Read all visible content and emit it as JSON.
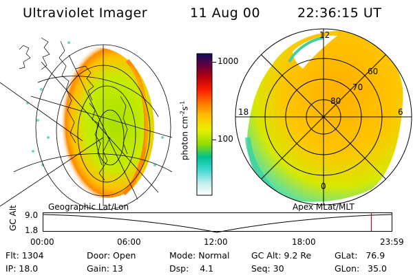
{
  "header": {
    "instrument": "Ultraviolet Imager",
    "date": "11 Aug 00",
    "time": "22:36:15 UT"
  },
  "colorbar": {
    "label": "photon cm^-2 s^-1",
    "label_main": "photon cm",
    "label_sup1": "-2",
    "label_mid": "s",
    "label_sup2": "-1",
    "tick_1000": "1000",
    "tick_100": "100",
    "colors": [
      "#ffffff",
      "#d0f0f0",
      "#40e0d0",
      "#00c8a0",
      "#a0e000",
      "#ffff00",
      "#ffc000",
      "#ff8000",
      "#ff2000",
      "#b00000",
      "#600040",
      "#101060"
    ]
  },
  "left_panel": {
    "label": "Geographic Lat/Lon"
  },
  "right_panel": {
    "label": "Apex MLat/MLT",
    "mlt_12": "12",
    "mlt_18": "18",
    "mlt_6": "6",
    "mlt_0": "0",
    "lat_60": "60",
    "lat_70": "70",
    "lat_80": "80"
  },
  "altitude_plot": {
    "ylabel": "GC Alt",
    "ytick_top": "9.0",
    "ytick_bottom": "1.8",
    "xticks": [
      "00:00",
      "06:00",
      "12:00",
      "18:00",
      "23:59"
    ],
    "marker_time_fraction": 0.94
  },
  "info": {
    "flt_label": "Flt:",
    "flt_value": "1304",
    "ip_label": "IP:",
    "ip_value": "18.0",
    "door_label": "Door:",
    "door_value": "Open",
    "gain_label": "Gain:",
    "gain_value": "13",
    "mode_label": "Mode:",
    "mode_value": "Normal",
    "dsp_label": "Dsp:",
    "dsp_value": "4.1",
    "gcalt_label": "GC Alt:",
    "gcalt_value": "9.2 Re",
    "seq_label": "Seq:",
    "seq_value": "30",
    "glat_label": "GLat:",
    "glat_value": "76.9",
    "glon_label": "GLon:",
    "glon_value": "35.0"
  }
}
